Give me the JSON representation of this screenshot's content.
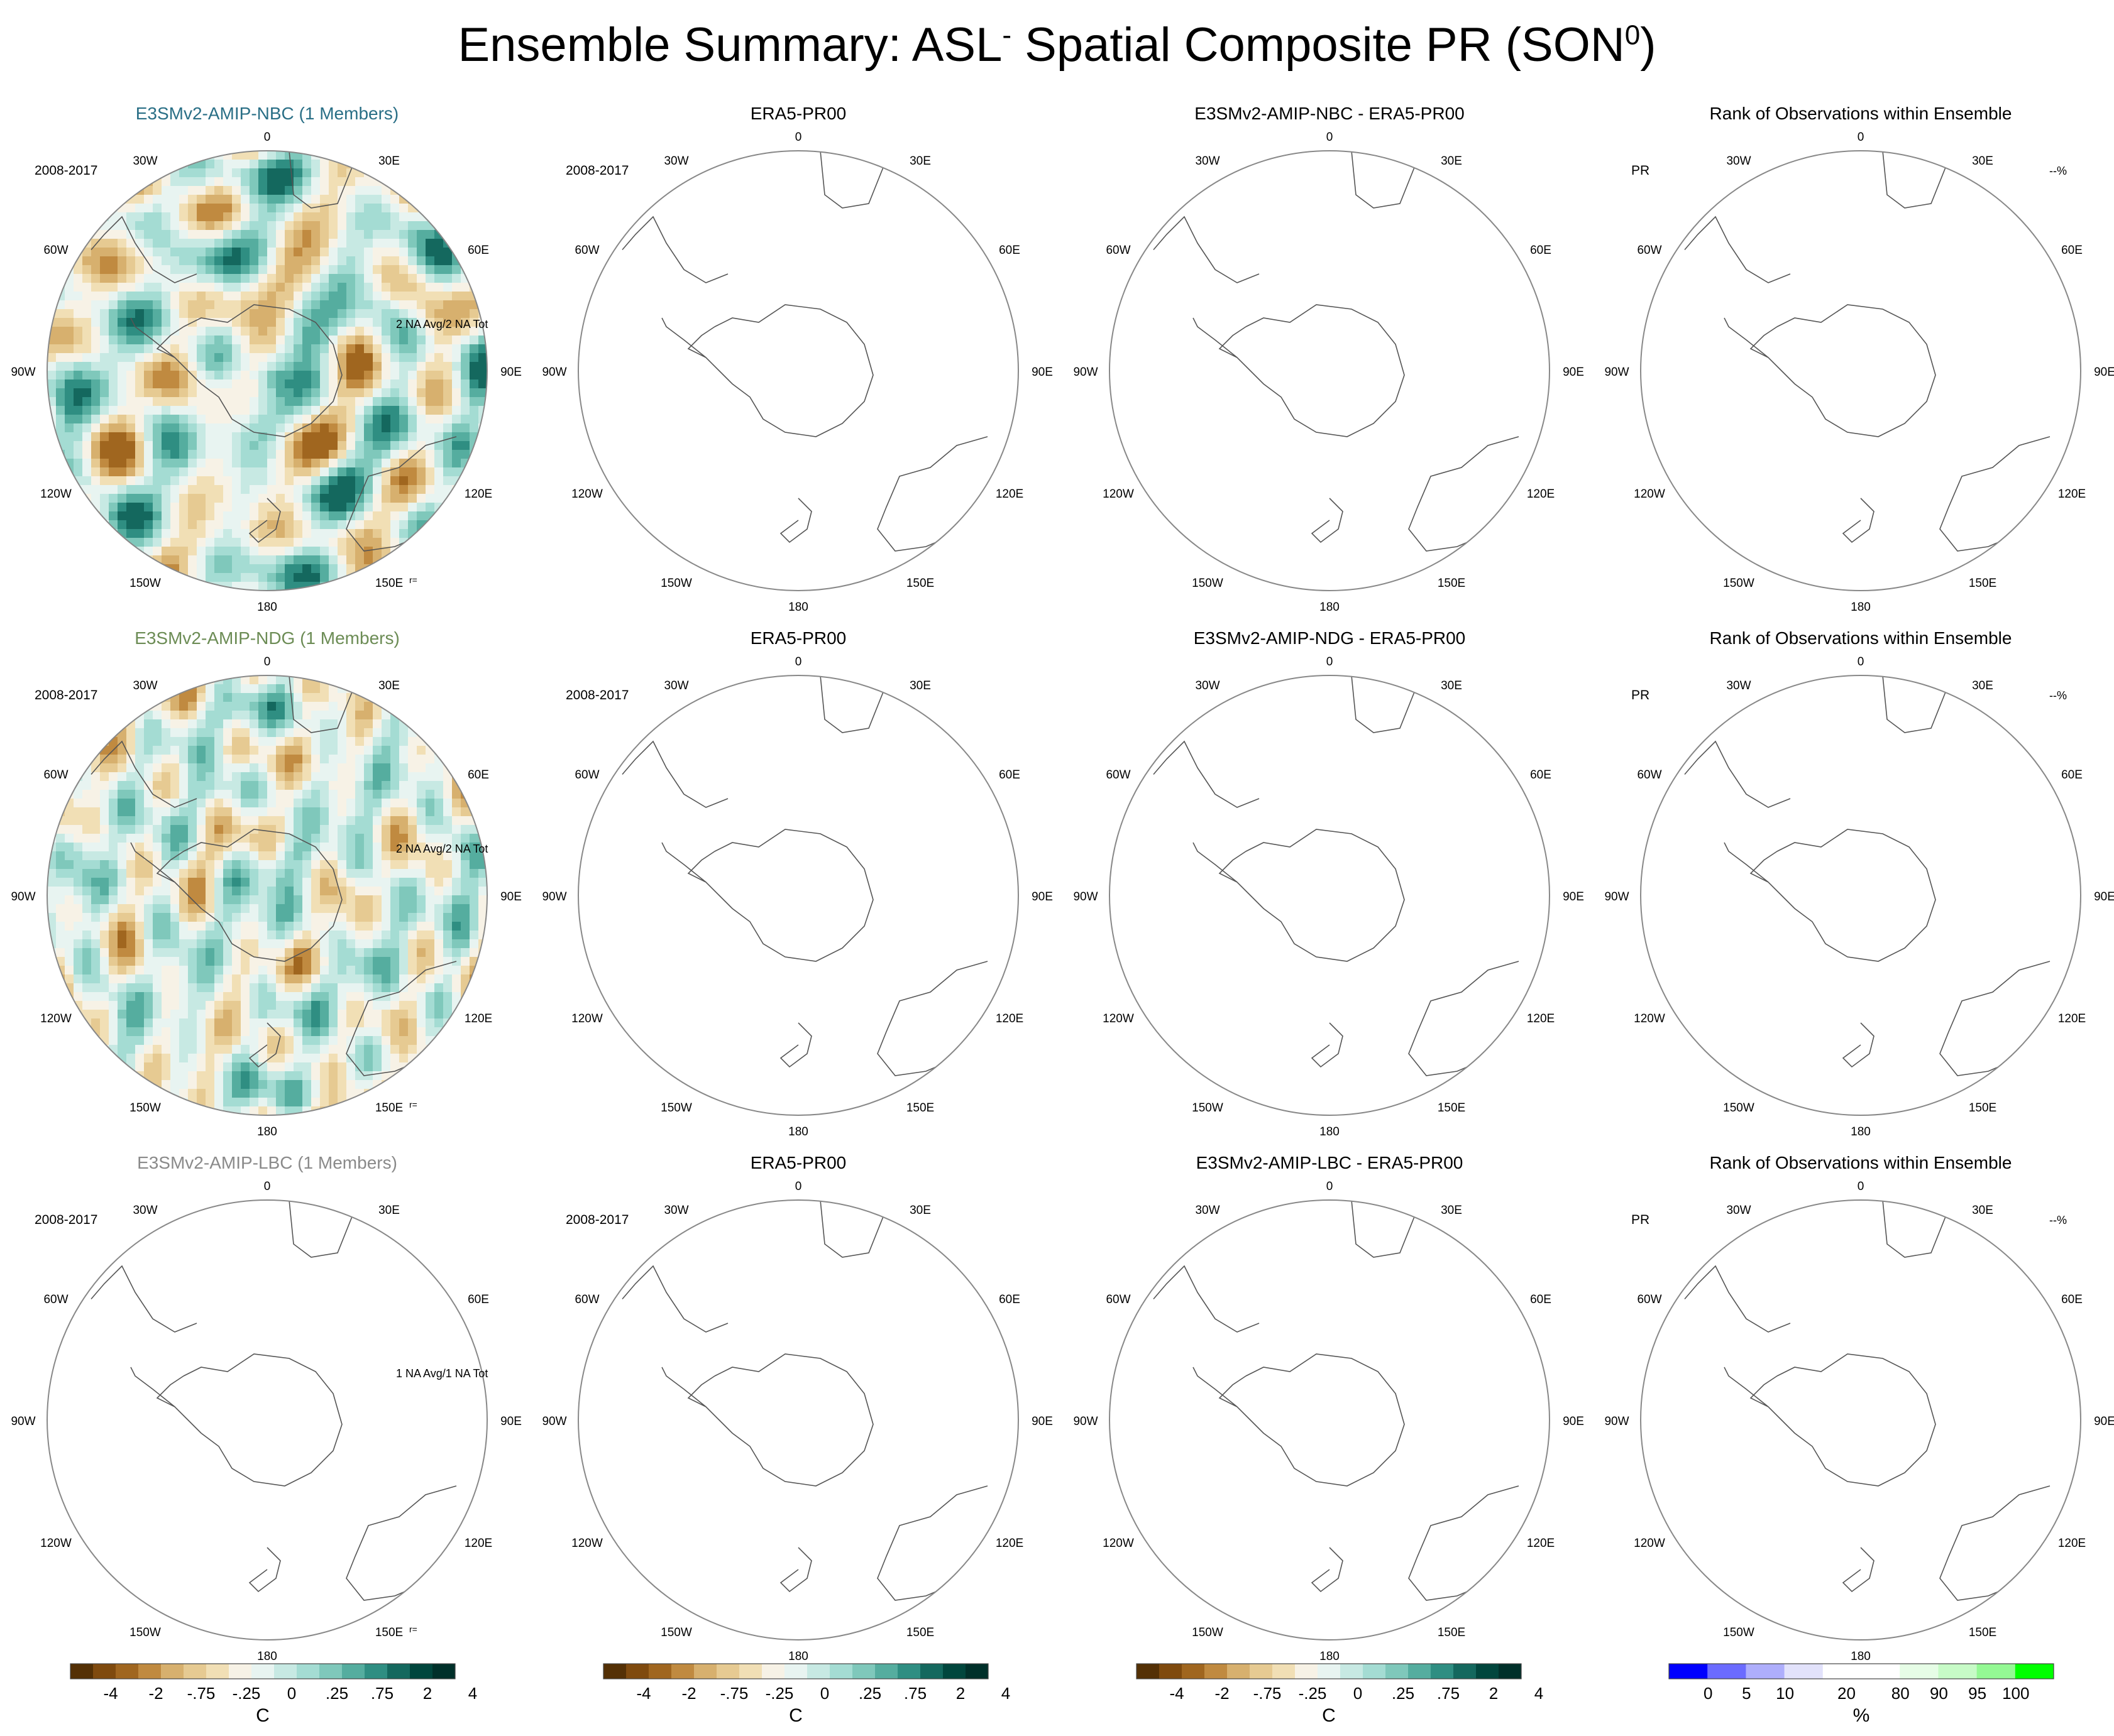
{
  "figure": {
    "title_main": "Ensemble Summary: ASL",
    "title_sup1": "-",
    "title_mid": " Spatial Composite PR (SON",
    "title_sup2": "0",
    "title_end": ")"
  },
  "lon_labels": [
    "0",
    "30E",
    "60E",
    "90E",
    "120E",
    "150E",
    "180",
    "150W",
    "120W",
    "90W",
    "60W",
    "30W"
  ],
  "colors": {
    "brbg": [
      "#543005",
      "#7f4a0e",
      "#a0661f",
      "#c08a40",
      "#d7b06e",
      "#e6ca92",
      "#f1dfb5",
      "#f7f2e6",
      "#e8f4f1",
      "#c7e9e3",
      "#a4dcd3",
      "#7fc8bb",
      "#55ad9f",
      "#2f8e82",
      "#14685e",
      "#01463d",
      "#00302a"
    ],
    "rank": [
      "#0000ff",
      "#6b6bff",
      "#aeaefc",
      "#e2e2fb",
      "#ffffff",
      "#ffffff",
      "#e6fde6",
      "#c7fbc7",
      "#94f994",
      "#00ff00"
    ],
    "title_nbc": "#2a6f86",
    "title_ndg": "#6c8c55",
    "title_lbc": "#8a8a8a"
  },
  "chart_data": [
    {
      "type": "map",
      "title": "E3SMv2-AMIP-NBC (1 Members)",
      "period": "2008-2017",
      "annotation": "2 NA Avg/2 NA Tot",
      "corner": "r=",
      "filled": true,
      "pattern": 1
    },
    {
      "type": "map",
      "title": "ERA5-PR00",
      "period": "2008-2017",
      "annotation": "",
      "corner": "",
      "filled": false
    },
    {
      "type": "map",
      "title": "E3SMv2-AMIP-NBC - ERA5-PR00",
      "period": "",
      "annotation": "",
      "corner": "",
      "filled": false
    },
    {
      "type": "map",
      "title": "Rank of Observations within Ensemble",
      "period": "PR",
      "annotation": "--%",
      "corner": "",
      "filled": false
    },
    {
      "type": "map",
      "title": "E3SMv2-AMIP-NDG (1 Members)",
      "period": "2008-2017",
      "annotation": "2 NA Avg/2 NA Tot",
      "corner": "r=",
      "filled": true,
      "pattern": 2
    },
    {
      "type": "map",
      "title": "ERA5-PR00",
      "period": "2008-2017",
      "annotation": "",
      "corner": "",
      "filled": false
    },
    {
      "type": "map",
      "title": "E3SMv2-AMIP-NDG - ERA5-PR00",
      "period": "",
      "annotation": "",
      "corner": "",
      "filled": false
    },
    {
      "type": "map",
      "title": "Rank of Observations within Ensemble",
      "period": "PR",
      "annotation": "--%",
      "corner": "",
      "filled": false
    },
    {
      "type": "map",
      "title": "E3SMv2-AMIP-LBC (1 Members)",
      "period": "2008-2017",
      "annotation": "1 NA Avg/1 NA Tot",
      "corner": "r=",
      "filled": false
    },
    {
      "type": "map",
      "title": "ERA5-PR00",
      "period": "2008-2017",
      "annotation": "",
      "corner": "",
      "filled": false
    },
    {
      "type": "map",
      "title": "E3SMv2-AMIP-LBC - ERA5-PR00",
      "period": "",
      "annotation": "",
      "corner": "",
      "filled": false
    },
    {
      "type": "map",
      "title": "Rank of Observations within Ensemble",
      "period": "PR",
      "annotation": "--%",
      "corner": "",
      "filled": false
    }
  ],
  "colorbars": [
    {
      "ticks": [
        "-4",
        "-2",
        "-.75",
        "-.25",
        "0",
        ".25",
        ".75",
        "2",
        "4"
      ],
      "unit": "C"
    },
    {
      "ticks": [
        "-4",
        "-2",
        "-.75",
        "-.25",
        "0",
        ".25",
        ".75",
        "2",
        "4"
      ],
      "unit": "C"
    },
    {
      "ticks": [
        "-4",
        "-2",
        "-.75",
        "-.25",
        "0",
        ".25",
        ".75",
        "2",
        "4"
      ],
      "unit": "C"
    },
    {
      "ticks": [
        "0",
        "5",
        "10",
        "20",
        "80",
        "90",
        "95",
        "100"
      ],
      "unit": "%"
    }
  ]
}
